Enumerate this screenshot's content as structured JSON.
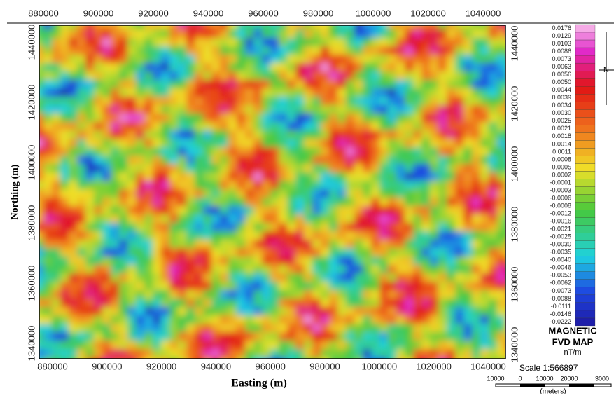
{
  "map": {
    "top_ticks": [
      "880000",
      "900000",
      "920000",
      "940000",
      "960000",
      "980000",
      "1000000",
      "1020000",
      "1040000"
    ],
    "bottom_ticks": [
      "880000",
      "900000",
      "920000",
      "940000",
      "960000",
      "980000",
      "1000000",
      "1020000",
      "1040000"
    ],
    "left_ticks": [
      "1440000",
      "1420000",
      "1400000",
      "1380000",
      "1360000",
      "1340000"
    ],
    "right_ticks": [
      "1440000",
      "1420000",
      "1400000",
      "1380000",
      "1360000",
      "1340000"
    ],
    "x_label": "Easting (m)",
    "y_label": "Northing (m)"
  },
  "legend": {
    "labels": [
      "0.0176",
      "0.0129",
      "0.0103",
      "0.0086",
      "0.0073",
      "0.0063",
      "0.0056",
      "0.0050",
      "0.0044",
      "0.0039",
      "0.0034",
      "0.0030",
      "0.0025",
      "0.0021",
      "0.0018",
      "0.0014",
      "0.0011",
      "0.0008",
      "0.0005",
      "0.0002",
      "-0.0001",
      "-0.0003",
      "-0.0006",
      "-0.0008",
      "-0.0012",
      "-0.0016",
      "-0.0021",
      "-0.0025",
      "-0.0030",
      "-0.0035",
      "-0.0040",
      "-0.0046",
      "-0.0053",
      "-0.0062",
      "-0.0073",
      "-0.0088",
      "-0.0111",
      "-0.0146",
      "-0.0222"
    ],
    "title_1": "MAGNETIC",
    "title_2": "FVD MAP",
    "units": "nT/m"
  },
  "north": "N",
  "scale": {
    "text": "Scale 1:566897",
    "bar_labels": [
      "10000",
      "0",
      "10000",
      "20000",
      "3000"
    ],
    "units": "(meters)"
  }
}
